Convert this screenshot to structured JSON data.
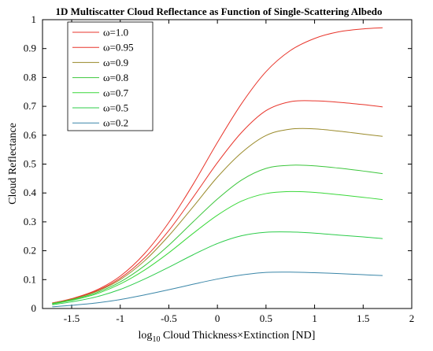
{
  "chart_data": {
    "type": "line",
    "title": "1D Multiscatter Cloud Reflectance as Function of Single-Scattering Albedo",
    "xlabel_prefix": "log",
    "xlabel_subscript": "10",
    "xlabel_rest": " Cloud Thickness×Extinction [ND]",
    "ylabel": "Cloud Reflectance",
    "xlim": [
      -1.8,
      2
    ],
    "ylim": [
      0,
      1
    ],
    "xticks": [
      -1.5,
      -1,
      -0.5,
      0,
      0.5,
      1,
      1.5,
      2
    ],
    "xtick_labels": [
      "-1.5",
      "-1",
      "-0.5",
      "0",
      "0.5",
      "1",
      "1.5",
      "2"
    ],
    "yticks": [
      0,
      0.1,
      0.2,
      0.3,
      0.4,
      0.5,
      0.6,
      0.7,
      0.8,
      0.9,
      1
    ],
    "ytick_labels": [
      "0",
      "0.1",
      "0.2",
      "0.3",
      "0.4",
      "0.5",
      "0.6",
      "0.7",
      "0.8",
      "0.9",
      "1"
    ],
    "grid": false,
    "legend_position": "top-left",
    "x": [
      -1.7,
      -1.5,
      -1.25,
      -1.0,
      -0.75,
      -0.5,
      -0.25,
      0.0,
      0.25,
      0.5,
      0.75,
      1.0,
      1.25,
      1.5,
      1.7
    ],
    "series": [
      {
        "name": "ω=1.0",
        "color": "#e8352b",
        "values": [
          0.019,
          0.034,
          0.063,
          0.112,
          0.19,
          0.298,
          0.43,
          0.575,
          0.71,
          0.82,
          0.893,
          0.935,
          0.958,
          0.968,
          0.972
        ]
      },
      {
        "name": "ω=0.95",
        "color": "#e8352b",
        "values": [
          0.019,
          0.033,
          0.06,
          0.105,
          0.175,
          0.27,
          0.385,
          0.505,
          0.61,
          0.685,
          0.716,
          0.719,
          0.714,
          0.706,
          0.698
        ]
      },
      {
        "name": "ω=0.9",
        "color": "#9a8a2a",
        "values": [
          0.018,
          0.032,
          0.058,
          0.1,
          0.165,
          0.252,
          0.352,
          0.455,
          0.54,
          0.599,
          0.621,
          0.622,
          0.614,
          0.604,
          0.596
        ]
      },
      {
        "name": "ω=0.8",
        "color": "#3cc63c",
        "values": [
          0.017,
          0.03,
          0.054,
          0.092,
          0.148,
          0.219,
          0.3,
          0.379,
          0.445,
          0.485,
          0.496,
          0.494,
          0.486,
          0.476,
          0.467
        ]
      },
      {
        "name": "ω=0.7",
        "color": "#3ad83a",
        "values": [
          0.016,
          0.028,
          0.05,
          0.085,
          0.133,
          0.193,
          0.26,
          0.323,
          0.372,
          0.398,
          0.405,
          0.402,
          0.394,
          0.385,
          0.377
        ]
      },
      {
        "name": "ω=0.5",
        "color": "#2ccc4a",
        "values": [
          0.013,
          0.023,
          0.04,
          0.066,
          0.102,
          0.143,
          0.186,
          0.225,
          0.252,
          0.264,
          0.265,
          0.261,
          0.254,
          0.248,
          0.242
        ]
      },
      {
        "name": "ω=0.2",
        "color": "#3a86a8",
        "values": [
          0.006,
          0.011,
          0.019,
          0.031,
          0.047,
          0.065,
          0.084,
          0.102,
          0.116,
          0.125,
          0.126,
          0.124,
          0.121,
          0.117,
          0.114
        ]
      }
    ]
  }
}
